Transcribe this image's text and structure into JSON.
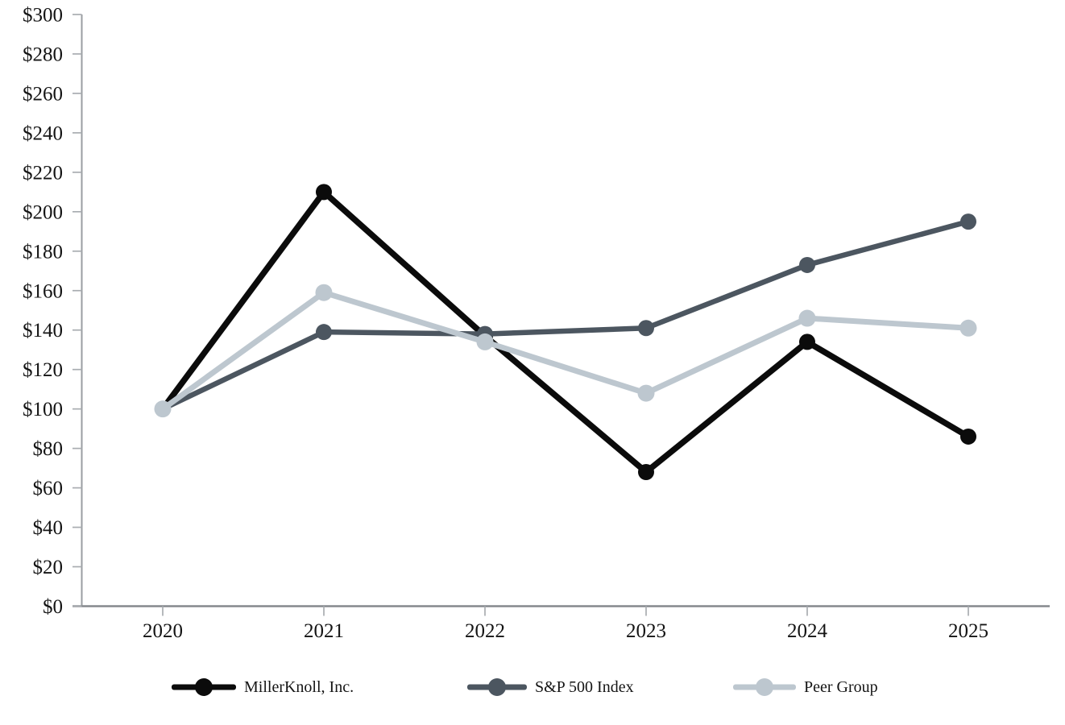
{
  "page": {
    "background": "#ffffff"
  },
  "chart_data": {
    "type": "line",
    "title": "",
    "xlabel": "",
    "ylabel": "",
    "x_labels": [
      "2020",
      "2021",
      "2022",
      "2023",
      "2024",
      "2025"
    ],
    "y_ticks": [
      0,
      20,
      40,
      60,
      80,
      100,
      120,
      140,
      160,
      180,
      200,
      220,
      240,
      260,
      280,
      300
    ],
    "y_tick_labels": [
      "$0",
      "$20",
      "$40",
      "$60",
      "$80",
      "$100",
      "$120",
      "$140",
      "$160",
      "$180",
      "$200",
      "$220",
      "$240",
      "$260",
      "$280",
      "$300"
    ],
    "ylim": [
      0,
      300
    ],
    "grid": false,
    "legend_position": "bottom",
    "series": [
      {
        "name": "MillerKnoll, Inc.",
        "color": "#0b0b0b",
        "values": [
          100,
          210,
          137,
          68,
          134,
          86
        ]
      },
      {
        "name": "S&P 500 Index",
        "color": "#4c5660",
        "values": [
          100,
          139,
          138,
          141,
          173,
          195
        ]
      },
      {
        "name": "Peer Group",
        "color": "#bdc7cf",
        "values": [
          100,
          159,
          134,
          108,
          146,
          141
        ]
      }
    ],
    "axis_color": "#85898d",
    "tick_color": "#a9adb1",
    "label_color": "#141414"
  }
}
